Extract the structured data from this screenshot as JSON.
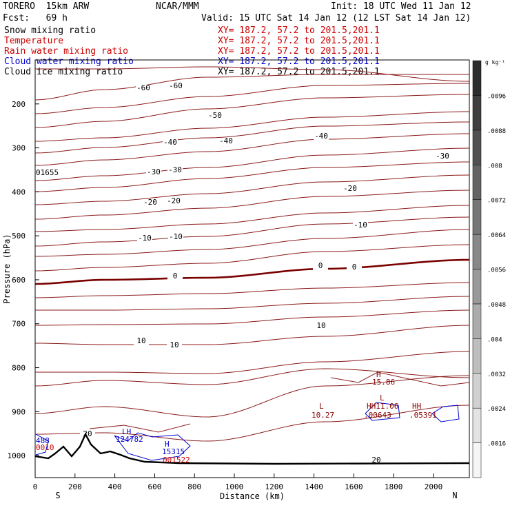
{
  "header": {
    "model": "TORERO  15km ARW",
    "org": "NCAR/MMM",
    "init": "Init: 18 UTC Wed 11 Jan 12",
    "fcst": "Fcst:   69 h",
    "valid": "Valid: 15 UTC Sat 14 Jan 12 (12 LST Sat 14 Jan 12)"
  },
  "legend": [
    {
      "name": "Snow mixing ratio",
      "xy": "XY= 187.2, 57.2 to 201.5,201.1",
      "color": "#000000",
      "xycolor": "#cc0000"
    },
    {
      "name": "Temperature",
      "xy": "XY= 187.2, 57.2 to 201.5,201.1",
      "color": "#cc0000",
      "xycolor": "#cc0000"
    },
    {
      "name": "Rain water mixing ratio",
      "xy": "XY= 187.2, 57.2 to 201.5,201.1",
      "color": "#cc0000",
      "xycolor": "#cc0000"
    },
    {
      "name": "Cloud water mixing ratio",
      "xy": "XY= 187.2, 57.2 to 201.5,201.1",
      "color": "#0000cc",
      "xycolor": "#0000cc"
    },
    {
      "name": "Cloud ice mixing ratio",
      "xy": "XY= 187.2, 57.2 to 201.5,201.1",
      "color": "#000000",
      "xycolor": "#000000"
    }
  ],
  "chart_data": {
    "type": "line",
    "xlabel": "Distance (km)",
    "ylabel": "Pressure (hPa)",
    "xlim": [
      0,
      2180
    ],
    "ylim": [
      1050,
      100
    ],
    "x_ticks": [
      "0",
      "200",
      "400",
      "600",
      "800",
      "1000",
      "1200",
      "1400",
      "1600",
      "1800",
      "2000"
    ],
    "y_ticks": [
      "200",
      "300",
      "400",
      "500",
      "600",
      "700",
      "800",
      "900",
      "1000"
    ],
    "x_end_labels": {
      "left": "S",
      "right": "N"
    },
    "colorbar": {
      "unit": "g kg⁻¹",
      "ticks": [
        ".0096",
        ".0088",
        ".008",
        ".0072",
        ".0064",
        ".0056",
        ".0048",
        ".004",
        ".0032",
        ".0024",
        ".0016"
      ]
    },
    "temperature_contours": [
      {
        "level": -60,
        "labels": [
          "-60",
          "-60"
        ]
      },
      {
        "level": -50,
        "labels": [
          "-50"
        ]
      },
      {
        "level": -40,
        "labels": [
          "-40",
          "-40",
          "-40"
        ]
      },
      {
        "level": -30,
        "labels": [
          "-30",
          "-30",
          "-30"
        ]
      },
      {
        "level": -20,
        "labels": [
          "-20",
          "-20",
          "-20"
        ]
      },
      {
        "level": -10,
        "labels": [
          "-10",
          "-10",
          "-10"
        ]
      },
      {
        "level": 0,
        "labels": [
          "0",
          "0",
          "0"
        ]
      },
      {
        "level": 10,
        "labels": [
          "10",
          "10",
          "10"
        ]
      },
      {
        "level": 20,
        "labels": [
          "20",
          "20"
        ]
      }
    ],
    "annotations": [
      {
        "text": "01655",
        "color": "#000000"
      },
      {
        "text": "H",
        "color": "#880000"
      },
      {
        "text": "15.86",
        "color": "#880000"
      },
      {
        "text": "L",
        "color": "#880000"
      },
      {
        "text": "L",
        "color": "#880000"
      },
      {
        "text": "10.27",
        "color": "#880000"
      },
      {
        "text": "HH11.06",
        "color": "#880000"
      },
      {
        "text": ".00643",
        "color": "#880000"
      },
      {
        "text": "HH",
        "color": "#880000"
      },
      {
        "text": ".05391",
        "color": "#880000"
      },
      {
        "text": "LH",
        "color": "#0000cc"
      },
      {
        "text": "124782",
        "color": "#0000cc"
      },
      {
        "text": "H",
        "color": "#0000cc"
      },
      {
        "text": "15315",
        "color": "#0000cc"
      },
      {
        "text": "001522",
        "color": "#cc0000"
      },
      {
        "text": "488",
        "color": "#0000cc"
      },
      {
        "text": "0010",
        "color": "#cc0000"
      }
    ]
  }
}
